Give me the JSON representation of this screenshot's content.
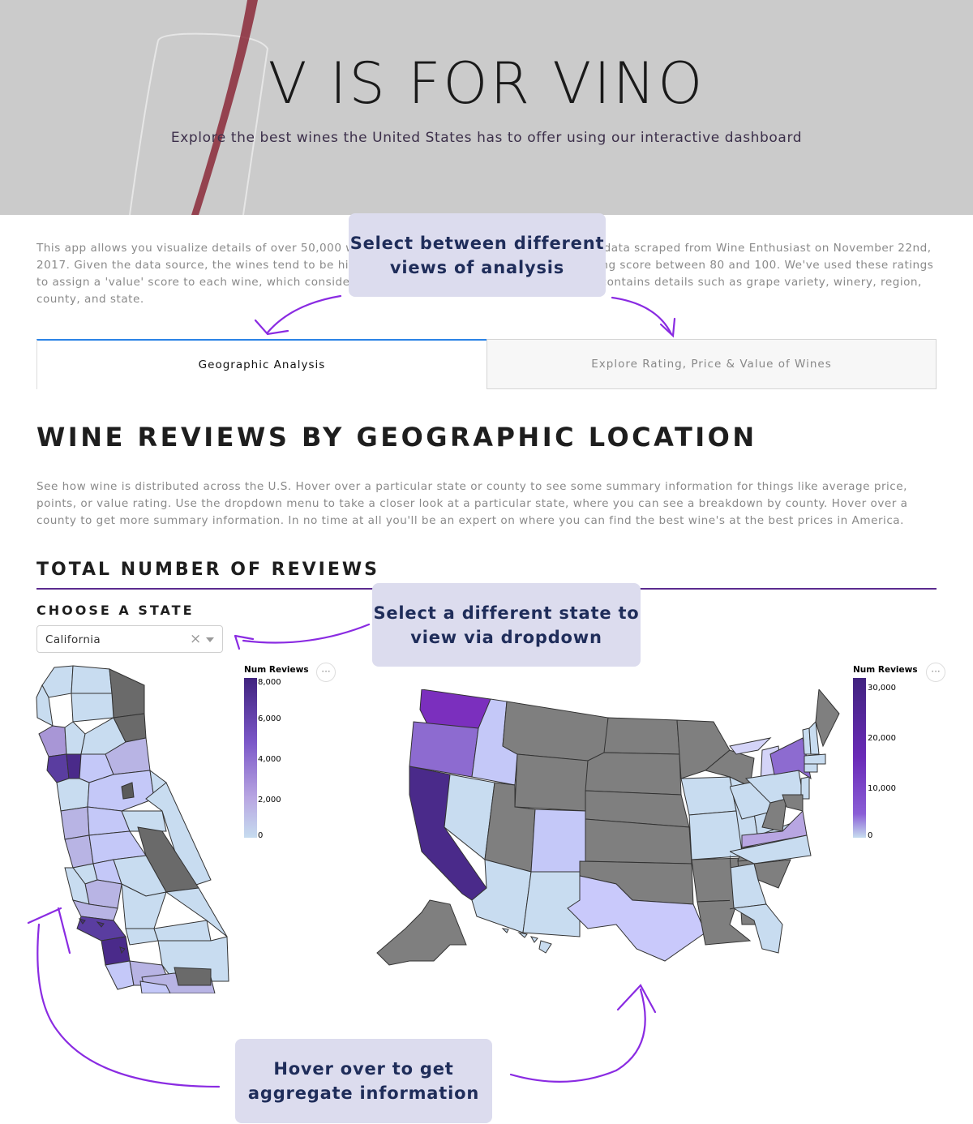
{
  "header": {
    "title": "V IS FOR VINO",
    "subtitle": "Explore the best wines the United States has to offer using our interactive dashboard"
  },
  "intro": {
    "text": "This app allows you visualize details of over 50,000 wine reviews from the United States, using data scraped from Wine Enthusiast on November 22nd, 2017. Given the data source, the wines tend to be high quality, with all reviews receiving a rating score between 80 and 100. We've used these ratings to assign a 'value' score to each wine, which considers both rating and price. Each review also contains details such as grape variety, winery, region, county, and state."
  },
  "tabs": [
    {
      "label": "Geographic Analysis",
      "active": true
    },
    {
      "label": "Explore Rating, Price & Value of Wines",
      "active": false
    }
  ],
  "section": {
    "title": "WINE REVIEWS BY GEOGRAPHIC LOCATION",
    "description": "See how wine is distributed across the U.S. Hover over a particular state or county to see some summary information for things like average price, points, or value rating. Use the dropdown menu to take a closer look at a particular state, where you can see a breakdown by county. Hover over a county to get more summary information. In no time at all you'll be an expert on where you can find the best wine's at the best prices in America.",
    "subtitle": "TOTAL NUMBER OF REVIEWS"
  },
  "state_selector": {
    "label": "CHOOSE A STATE",
    "value": "California",
    "clear_icon": "close-icon",
    "arrow_icon": "chevron-down-icon"
  },
  "callouts": {
    "tabs": "Select between different views of analysis",
    "dropdown": "Select a different state to view via dropdown",
    "hover": "Hover over to get aggregate information"
  },
  "state_map": {
    "legend_title": "Num Reviews",
    "legend_ticks": [
      "8,000",
      "6,000",
      "4,000",
      "2,000",
      "0"
    ],
    "more_icon": "ellipsis-icon"
  },
  "us_map": {
    "legend_title": "Num Reviews",
    "legend_ticks": [
      "30,000",
      "20,000",
      "10,000",
      "0"
    ],
    "more_icon": "ellipsis-icon"
  },
  "colors": {
    "accent_purple": "#5b2b8f",
    "tab_active_border": "#2b83e6",
    "callout_bg": "#dcdcee",
    "no_data_gray": "#7f7f7f",
    "arrow_purple": "#8a2be2"
  }
}
